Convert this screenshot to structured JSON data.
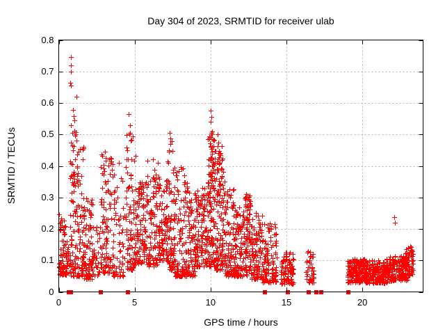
{
  "window": {
    "background": "#ffffff"
  },
  "chart_data": {
    "type": "scatter",
    "title": "Day 304 of 2023, SRMTID for receiver ulab",
    "xlabel": "GPS time / hours",
    "ylabel": "SRMTID / TECUs",
    "xlim": [
      0,
      24
    ],
    "ylim": [
      0,
      0.8
    ],
    "x_ticks": [
      0,
      5,
      10,
      15,
      20
    ],
    "x_tick_labels": [
      "0",
      "5",
      "10",
      "15",
      "20"
    ],
    "y_ticks": [
      0,
      0.1,
      0.2,
      0.3,
      0.4,
      0.5,
      0.6,
      0.7,
      0.8
    ],
    "y_tick_labels": [
      "0",
      "0.1",
      "0.2",
      "0.3",
      "0.4",
      "0.5",
      "0.6",
      "0.7",
      "0.8"
    ],
    "grid": true,
    "legend": "none",
    "marker": "plus",
    "zero_marker": "filled-square",
    "colors": {
      "points": "#ff0000",
      "grid": "#b0b0b0",
      "axis": "#000000",
      "text": "#000000"
    },
    "seed": 304,
    "cluster_fields": [
      "x_start_hours",
      "x_end_hours",
      "count",
      "y_min_tecus",
      "y_max_tecus",
      "low_skew"
    ],
    "clusters": [
      [
        0.02,
        0.5,
        85,
        0.055,
        0.26,
        2.2
      ],
      [
        0.5,
        0.78,
        18,
        0.06,
        0.16,
        1.5
      ],
      [
        0.75,
        1.25,
        90,
        0.05,
        0.52,
        2.0
      ],
      [
        1.25,
        1.65,
        55,
        0.05,
        0.46,
        2.2
      ],
      [
        1.6,
        2.25,
        95,
        0.04,
        0.3,
        1.7
      ],
      [
        2.25,
        2.72,
        30,
        0.05,
        0.22,
        1.5
      ],
      [
        2.75,
        3.45,
        95,
        0.06,
        0.45,
        2.0
      ],
      [
        3.5,
        4.35,
        75,
        0.05,
        0.41,
        2.0
      ],
      [
        4.4,
        5.05,
        85,
        0.07,
        0.5,
        2.1
      ],
      [
        5.0,
        5.7,
        95,
        0.09,
        0.35,
        1.6
      ],
      [
        5.7,
        6.6,
        115,
        0.08,
        0.42,
        1.8
      ],
      [
        6.6,
        7.15,
        85,
        0.1,
        0.36,
        1.5
      ],
      [
        7.15,
        7.6,
        70,
        0.07,
        0.5,
        2.1
      ],
      [
        7.6,
        8.25,
        95,
        0.05,
        0.4,
        1.9
      ],
      [
        8.25,
        9.0,
        110,
        0.05,
        0.35,
        1.7
      ],
      [
        9.0,
        9.8,
        115,
        0.08,
        0.33,
        1.5
      ],
      [
        9.8,
        10.35,
        95,
        0.08,
        0.52,
        1.9
      ],
      [
        9.85,
        10.3,
        40,
        0.25,
        0.5,
        1.2
      ],
      [
        10.35,
        10.95,
        85,
        0.07,
        0.46,
        1.8
      ],
      [
        10.4,
        10.9,
        35,
        0.28,
        0.47,
        1.2
      ],
      [
        10.95,
        11.6,
        95,
        0.05,
        0.33,
        1.7
      ],
      [
        11.6,
        12.2,
        90,
        0.05,
        0.27,
        1.6
      ],
      [
        12.2,
        12.65,
        55,
        0.16,
        0.31,
        1.0
      ],
      [
        12.2,
        12.7,
        45,
        0.05,
        0.17,
        1.2
      ],
      [
        12.7,
        13.45,
        95,
        0.04,
        0.25,
        1.7
      ],
      [
        13.45,
        14.35,
        115,
        0.03,
        0.22,
        1.8
      ],
      [
        14.6,
        15.45,
        90,
        0.025,
        0.125,
        1.4
      ],
      [
        16.25,
        16.8,
        40,
        0.03,
        0.13,
        1.4
      ],
      [
        19.0,
        20.2,
        170,
        0.03,
        0.105,
        1.3
      ],
      [
        20.2,
        21.6,
        190,
        0.028,
        0.1,
        1.3
      ],
      [
        21.6,
        22.95,
        190,
        0.035,
        0.115,
        1.3
      ],
      [
        22.85,
        23.35,
        60,
        0.05,
        0.145,
        1.2
      ]
    ],
    "notable_points": [
      [
        0.78,
        0.745
      ],
      [
        0.78,
        0.72
      ],
      [
        0.8,
        0.7
      ],
      [
        0.77,
        0.663
      ],
      [
        0.81,
        0.655
      ],
      [
        1.17,
        0.62
      ],
      [
        0.95,
        0.578
      ],
      [
        1.0,
        0.558
      ],
      [
        1.05,
        0.545
      ],
      [
        0.79,
        0.53
      ],
      [
        1.1,
        0.5
      ],
      [
        1.15,
        0.48
      ],
      [
        3.05,
        0.445
      ],
      [
        3.95,
        0.41
      ],
      [
        4.62,
        0.565
      ],
      [
        4.68,
        0.53
      ],
      [
        4.7,
        0.505
      ],
      [
        4.72,
        0.48
      ],
      [
        7.3,
        0.505
      ],
      [
        7.33,
        0.47
      ],
      [
        7.28,
        0.45
      ],
      [
        10.02,
        0.575
      ],
      [
        10.06,
        0.555
      ],
      [
        9.99,
        0.54
      ],
      [
        10.1,
        0.51
      ],
      [
        10.48,
        0.5
      ],
      [
        10.52,
        0.475
      ],
      [
        22.1,
        0.237
      ],
      [
        22.13,
        0.22
      ]
    ],
    "zero_marker_x": [
      0.65,
      0.8,
      2.78,
      4.55,
      13.57,
      15.07,
      16.48,
      16.97,
      17.28,
      19.08
    ]
  }
}
